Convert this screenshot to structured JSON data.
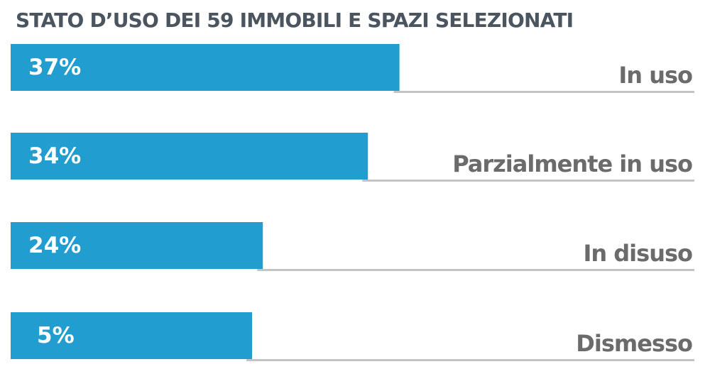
{
  "chart_data": {
    "type": "bar",
    "orientation": "horizontal",
    "title": "STATO D’USO DEI 59 IMMOBILI E SPAZI SELEZIONATI",
    "categories": [
      "In uso",
      "Parzialmente in uso",
      "In disuso",
      "Dismesso"
    ],
    "values": [
      37,
      34,
      24,
      5
    ],
    "value_labels": [
      "37%",
      "34%",
      "24%",
      "5%"
    ],
    "unit": "%",
    "grid": false,
    "legend": "none",
    "colors": {
      "bar": "#229dcf",
      "baseline": "#c4c4c4",
      "value_text": "#ffffff",
      "category_text": "#6b6b6b",
      "title_text": "#4a5560"
    }
  }
}
